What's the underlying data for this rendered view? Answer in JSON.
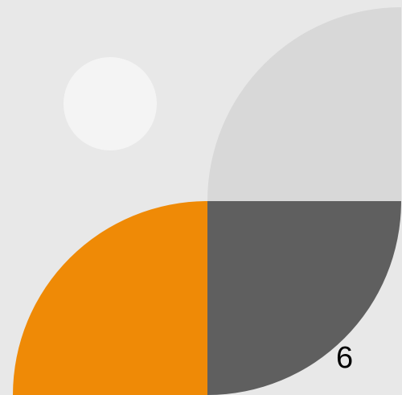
{
  "illustration": {
    "label": "6",
    "colors": {
      "background": "#e8e8e8",
      "circle": "#f4f4f4",
      "top_right_quarter": "#d8d8d8",
      "bottom_left_quarter": "#ef8a06",
      "bottom_right_quarter": "#5f5f5f",
      "label_text": "#000000"
    }
  }
}
